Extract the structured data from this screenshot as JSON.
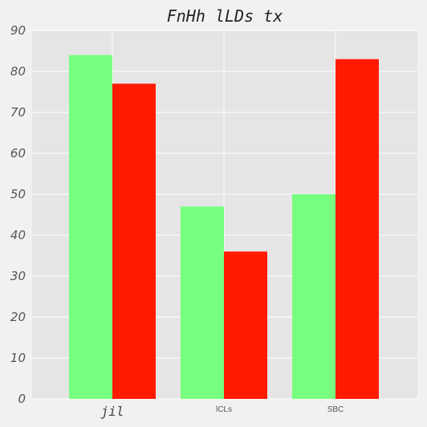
{
  "chart_data": {
    "type": "bar",
    "title": "FnHh lLDs  tx",
    "categories": [
      "jil",
      "lCLs",
      "SBC"
    ],
    "series": [
      {
        "values": [
          84,
          47,
          50
        ],
        "color": "#77ff80"
      },
      {
        "values": [
          77,
          36,
          83
        ],
        "color": "#ff1a00"
      }
    ],
    "xlabel": "",
    "ylabel": "",
    "ylim": [
      0,
      90
    ],
    "yticks": [
      0,
      10,
      20,
      30,
      40,
      50,
      60,
      70,
      80,
      90
    ],
    "grid": true,
    "legend": "none",
    "plot_background": "#e5e5e5",
    "figure_background": "#f1f1f1",
    "grid_color": "#ffffff"
  }
}
